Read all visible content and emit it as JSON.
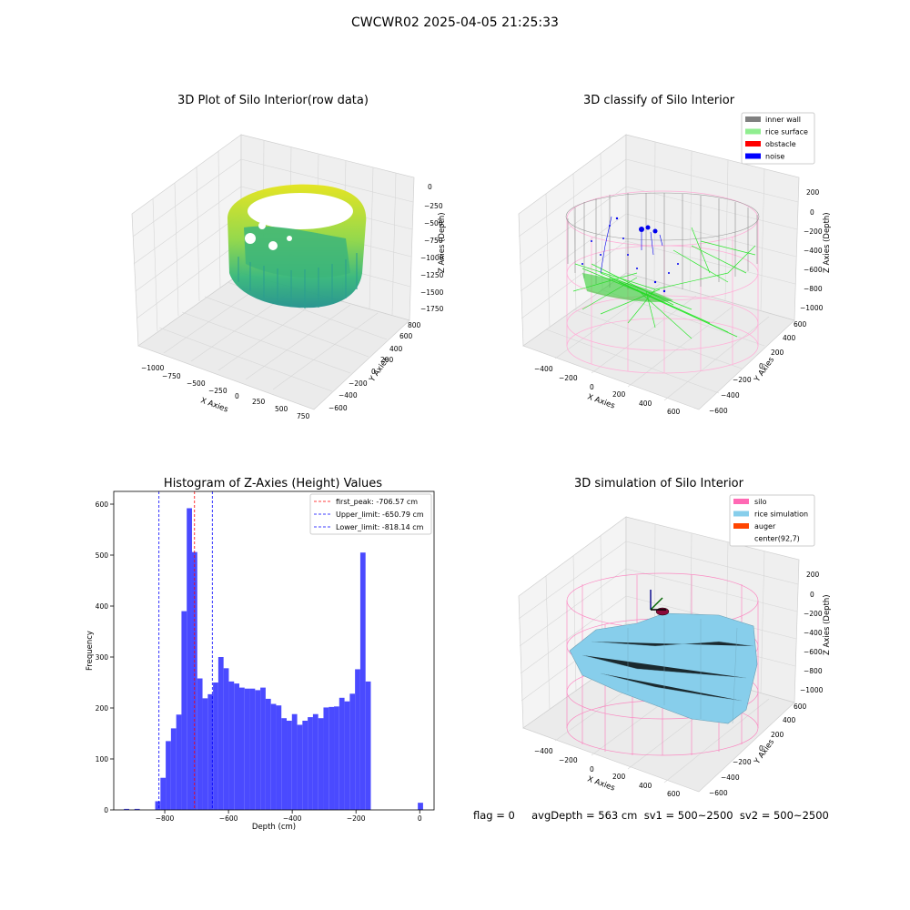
{
  "figure": {
    "suptitle": "CWCWR02 2025-04-05 21:25:33",
    "footer": "flag = 0     avgDepth = 563 cm  sv1 = 500~2500  sv2 = 500~2500"
  },
  "chart_data": [
    {
      "type": "scatter3d",
      "title": "3D Plot of Silo Interior(row data)",
      "xlabel": "X Axies",
      "ylabel": "Y Axies",
      "zlabel": "Z Axies (Depth)",
      "x_ticks": [
        "−1000",
        "−750",
        "−500",
        "−250",
        "0",
        "250",
        "500",
        "750"
      ],
      "y_ticks": [
        "−600",
        "−400",
        "−200",
        "0",
        "200",
        "400",
        "600",
        "800"
      ],
      "z_ticks": [
        "0",
        "−250",
        "−500",
        "−750",
        "−1000",
        "−1250",
        "−1500",
        "−1750"
      ],
      "colormap": "viridis",
      "grid": true
    },
    {
      "type": "scatter3d",
      "title": "3D classify of Silo Interior",
      "xlabel": "X Axies",
      "ylabel": "Y Axies",
      "zlabel": "Z Axies (Depth)",
      "x_ticks": [
        "−400",
        "−200",
        "0",
        "200",
        "400",
        "600"
      ],
      "y_ticks": [
        "−600",
        "−400",
        "−200",
        "0",
        "200",
        "400",
        "600"
      ],
      "z_ticks": [
        "200",
        "0",
        "−200",
        "−400",
        "−600",
        "−800",
        "−1000"
      ],
      "legend": [
        {
          "label": "inner wall",
          "color": "#808080"
        },
        {
          "label": "rice surface",
          "color": "#90ee90"
        },
        {
          "label": "obstacle",
          "color": "#ff0000"
        },
        {
          "label": "noise",
          "color": "#0000ff"
        }
      ],
      "legend_position": "top-right",
      "grid": true
    },
    {
      "type": "bar",
      "title": "Histogram of Z-Axies (Height) Values",
      "xlabel": "Depth (cm)",
      "ylabel": "Frequency",
      "xlim": [
        -960,
        45
      ],
      "ylim": [
        0,
        625
      ],
      "x_ticks": [
        -800,
        -600,
        -400,
        -200,
        0
      ],
      "y_ticks": [
        0,
        100,
        200,
        300,
        400,
        500,
        600
      ],
      "bin_width": 16.5,
      "bins": [
        {
          "start": -928,
          "value": 2
        },
        {
          "start": -895,
          "value": 2
        },
        {
          "start": -830,
          "value": 17
        },
        {
          "start": -813.5,
          "value": 63
        },
        {
          "start": -797,
          "value": 135
        },
        {
          "start": -780.5,
          "value": 160
        },
        {
          "start": -764,
          "value": 187
        },
        {
          "start": -747.5,
          "value": 390
        },
        {
          "start": -731,
          "value": 592
        },
        {
          "start": -714.5,
          "value": 506
        },
        {
          "start": -698,
          "value": 258
        },
        {
          "start": -681.5,
          "value": 219
        },
        {
          "start": -665,
          "value": 227
        },
        {
          "start": -648.5,
          "value": 250
        },
        {
          "start": -632,
          "value": 300
        },
        {
          "start": -615.5,
          "value": 278
        },
        {
          "start": -599,
          "value": 252
        },
        {
          "start": -582.5,
          "value": 248
        },
        {
          "start": -566,
          "value": 240
        },
        {
          "start": -549.5,
          "value": 238
        },
        {
          "start": -533,
          "value": 238
        },
        {
          "start": -516.5,
          "value": 235
        },
        {
          "start": -500,
          "value": 240
        },
        {
          "start": -483.5,
          "value": 218
        },
        {
          "start": -467,
          "value": 208
        },
        {
          "start": -450.5,
          "value": 205
        },
        {
          "start": -434,
          "value": 180
        },
        {
          "start": -417.5,
          "value": 175
        },
        {
          "start": -401,
          "value": 188
        },
        {
          "start": -384.5,
          "value": 167
        },
        {
          "start": -368,
          "value": 175
        },
        {
          "start": -351.5,
          "value": 182
        },
        {
          "start": -335,
          "value": 188
        },
        {
          "start": -318.5,
          "value": 180
        },
        {
          "start": -302,
          "value": 201
        },
        {
          "start": -285.5,
          "value": 202
        },
        {
          "start": -269,
          "value": 203
        },
        {
          "start": -252.5,
          "value": 220
        },
        {
          "start": -236,
          "value": 213
        },
        {
          "start": -219.5,
          "value": 228
        },
        {
          "start": -203,
          "value": 276
        },
        {
          "start": -186.5,
          "value": 505
        },
        {
          "start": -170,
          "value": 252
        },
        {
          "start": -6,
          "value": 14
        }
      ],
      "vlines": [
        {
          "x": -706.57,
          "color": "#ff0000",
          "label": "first_peak: -706.57 cm"
        },
        {
          "x": -650.79,
          "color": "#0000ff",
          "label": "Upper_limit: -650.79 cm"
        },
        {
          "x": -818.14,
          "color": "#0000ff",
          "label": "Lower_limit: -818.14 cm"
        }
      ],
      "bar_color": "#4a4aff",
      "legend_position": "top-right",
      "grid": false
    },
    {
      "type": "surface3d",
      "title": "3D simulation of Silo Interior",
      "xlabel": "X Axies",
      "ylabel": "Y Axies",
      "zlabel": "Z Axies (Depth)",
      "x_ticks": [
        "−400",
        "−200",
        "0",
        "200",
        "400",
        "600"
      ],
      "y_ticks": [
        "−600",
        "−400",
        "−200",
        "0",
        "200",
        "400",
        "600"
      ],
      "z_ticks": [
        "200",
        "0",
        "−200",
        "−400",
        "−600",
        "−800",
        "−1000"
      ],
      "legend": [
        {
          "label": "silo",
          "color": "#ff69b4"
        },
        {
          "label": "rice simulation",
          "color": "#87ceeb"
        },
        {
          "label": "auger",
          "color": "#ff4500"
        },
        {
          "label": "center(92,7)",
          "color": ""
        }
      ],
      "legend_position": "top-right",
      "grid": true
    }
  ]
}
